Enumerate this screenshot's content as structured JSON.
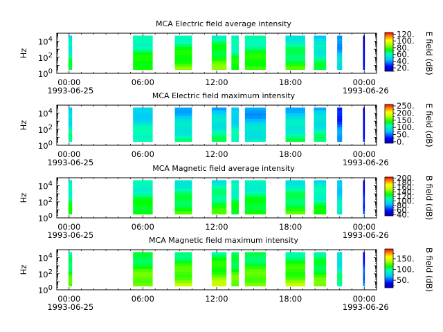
{
  "chart_data": [
    {
      "type": "heatmap",
      "title": "MCA  Electric field average intensity",
      "ylabel": "Hz",
      "y_scale": "log",
      "ylim": [
        1,
        100000
      ],
      "y_ticks": [
        {
          "base": "10",
          "exp": "0"
        },
        {
          "base": "10",
          "exp": "2"
        },
        {
          "base": "10",
          "exp": "4"
        }
      ],
      "x_range_hours": [
        -1,
        25
      ],
      "x_ticks": [
        {
          "hour": 0,
          "label": "00:00",
          "date": "1993-06-25"
        },
        {
          "hour": 6,
          "label": "06:00",
          "date": ""
        },
        {
          "hour": 12,
          "label": "12:00",
          "date": ""
        },
        {
          "hour": 18,
          "label": "18:00",
          "date": ""
        },
        {
          "hour": 24,
          "label": "00:00",
          "date": "1993-06-26"
        }
      ],
      "colorbar": {
        "label": "E field (dB)",
        "range": [
          10,
          125
        ],
        "ticks": [
          {
            "v": 20,
            "label": "20."
          },
          {
            "v": 40,
            "label": "40."
          },
          {
            "v": 60,
            "label": "60."
          },
          {
            "v": 80,
            "label": "80."
          },
          {
            "v": 100,
            "label": "100."
          },
          {
            "v": 120,
            "label": "120."
          }
        ]
      },
      "segments": [
        {
          "start": -0.05,
          "end": 0.25,
          "level": 60
        },
        {
          "start": 5.2,
          "end": 6.8,
          "level": 68
        },
        {
          "start": 8.6,
          "end": 10.0,
          "level": 72
        },
        {
          "start": 11.6,
          "end": 12.8,
          "level": 72
        },
        {
          "start": 13.2,
          "end": 13.8,
          "level": 66
        },
        {
          "start": 14.3,
          "end": 16.0,
          "level": 70
        },
        {
          "start": 17.6,
          "end": 19.2,
          "level": 66
        },
        {
          "start": 19.9,
          "end": 20.9,
          "level": 58
        },
        {
          "start": 21.8,
          "end": 22.2,
          "level": 45
        },
        {
          "start": 23.9,
          "end": 24.05,
          "level": 15
        }
      ]
    },
    {
      "type": "heatmap",
      "title": "MCA  Electric field maximum intensity",
      "ylabel": "Hz",
      "y_scale": "log",
      "ylim": [
        1,
        100000
      ],
      "y_ticks": [
        {
          "base": "10",
          "exp": "0"
        },
        {
          "base": "10",
          "exp": "2"
        },
        {
          "base": "10",
          "exp": "4"
        }
      ],
      "x_range_hours": [
        -1,
        25
      ],
      "x_ticks": [
        {
          "hour": 0,
          "label": "00:00",
          "date": "1993-06-25"
        },
        {
          "hour": 6,
          "label": "06:00",
          "date": ""
        },
        {
          "hour": 12,
          "label": "12:00",
          "date": ""
        },
        {
          "hour": 18,
          "label": "18:00",
          "date": ""
        },
        {
          "hour": 24,
          "label": "00:00",
          "date": "1993-06-26"
        }
      ],
      "colorbar": {
        "label": "E field (dB)",
        "range": [
          -10,
          260
        ],
        "ticks": [
          {
            "v": 0,
            "label": "0."
          },
          {
            "v": 50,
            "label": "50."
          },
          {
            "v": 100,
            "label": "100."
          },
          {
            "v": 150,
            "label": "150."
          },
          {
            "v": 200,
            "label": "200."
          },
          {
            "v": 250,
            "label": "250."
          }
        ]
      },
      "segments": [
        {
          "start": -0.05,
          "end": 0.25,
          "level": 95
        },
        {
          "start": 5.2,
          "end": 6.8,
          "level": 95
        },
        {
          "start": 8.6,
          "end": 10.0,
          "level": 90
        },
        {
          "start": 11.6,
          "end": 12.8,
          "level": 95
        },
        {
          "start": 13.2,
          "end": 13.8,
          "level": 90
        },
        {
          "start": 14.3,
          "end": 16.0,
          "level": 80
        },
        {
          "start": 17.6,
          "end": 19.2,
          "level": 95
        },
        {
          "start": 19.9,
          "end": 20.9,
          "level": 95
        },
        {
          "start": 21.8,
          "end": 22.2,
          "level": 45
        },
        {
          "start": 23.9,
          "end": 24.05,
          "level": 10
        }
      ]
    },
    {
      "type": "heatmap",
      "title": "MCA  Magnetic field average intensity",
      "ylabel": "Hz",
      "y_scale": "log",
      "ylim": [
        1,
        100000
      ],
      "y_ticks": [
        {
          "base": "10",
          "exp": "0"
        },
        {
          "base": "10",
          "exp": "2"
        },
        {
          "base": "10",
          "exp": "4"
        }
      ],
      "x_range_hours": [
        -1,
        25
      ],
      "x_ticks": [
        {
          "hour": 0,
          "label": "00:00",
          "date": "1993-06-25"
        },
        {
          "hour": 6,
          "label": "06:00",
          "date": ""
        },
        {
          "hour": 12,
          "label": "12:00",
          "date": ""
        },
        {
          "hour": 18,
          "label": "18:00",
          "date": ""
        },
        {
          "hour": 24,
          "label": "00:00",
          "date": "1993-06-26"
        }
      ],
      "colorbar": {
        "label": "B field (dB)",
        "range": [
          35,
          205
        ],
        "ticks": [
          {
            "v": 40,
            "label": "40."
          },
          {
            "v": 60,
            "label": "60."
          },
          {
            "v": 80,
            "label": "80."
          },
          {
            "v": 100,
            "label": "100."
          },
          {
            "v": 120,
            "label": "120."
          },
          {
            "v": 140,
            "label": "140."
          },
          {
            "v": 160,
            "label": "160."
          },
          {
            "v": 180,
            "label": "180."
          },
          {
            "v": 200,
            "label": "200."
          }
        ]
      },
      "segments": [
        {
          "start": -0.05,
          "end": 0.25,
          "level": 115
        },
        {
          "start": 5.2,
          "end": 6.8,
          "level": 118
        },
        {
          "start": 8.6,
          "end": 10.0,
          "level": 118
        },
        {
          "start": 11.6,
          "end": 12.8,
          "level": 118
        },
        {
          "start": 13.2,
          "end": 13.8,
          "level": 115
        },
        {
          "start": 14.3,
          "end": 16.0,
          "level": 118
        },
        {
          "start": 17.6,
          "end": 19.2,
          "level": 118
        },
        {
          "start": 19.9,
          "end": 20.9,
          "level": 112
        },
        {
          "start": 21.8,
          "end": 22.2,
          "level": 95
        },
        {
          "start": 23.9,
          "end": 24.05,
          "level": 55
        }
      ]
    },
    {
      "type": "heatmap",
      "title": "MCA  Magnetic field maximum intensity",
      "ylabel": "Hz",
      "y_scale": "log",
      "ylim": [
        1,
        100000
      ],
      "y_ticks": [
        {
          "base": "10",
          "exp": "0"
        },
        {
          "base": "10",
          "exp": "2"
        },
        {
          "base": "10",
          "exp": "4"
        }
      ],
      "x_range_hours": [
        -1,
        25
      ],
      "x_ticks": [
        {
          "hour": 0,
          "label": "00:00",
          "date": "1993-06-25"
        },
        {
          "hour": 6,
          "label": "06:00",
          "date": ""
        },
        {
          "hour": 12,
          "label": "12:00",
          "date": ""
        },
        {
          "hour": 18,
          "label": "18:00",
          "date": ""
        },
        {
          "hour": 24,
          "label": "00:00",
          "date": "1993-06-26"
        }
      ],
      "colorbar": {
        "label": "B field (dB)",
        "range": [
          15,
          195
        ],
        "ticks": [
          {
            "v": 50,
            "label": "50."
          },
          {
            "v": 100,
            "label": "100."
          },
          {
            "v": 150,
            "label": "150."
          }
        ]
      },
      "segments": [
        {
          "start": -0.05,
          "end": 0.25,
          "level": 110
        },
        {
          "start": 5.2,
          "end": 6.8,
          "level": 118
        },
        {
          "start": 8.6,
          "end": 10.0,
          "level": 120
        },
        {
          "start": 11.6,
          "end": 12.8,
          "level": 120
        },
        {
          "start": 13.2,
          "end": 13.8,
          "level": 115
        },
        {
          "start": 14.3,
          "end": 16.0,
          "level": 118
        },
        {
          "start": 17.6,
          "end": 19.2,
          "level": 118
        },
        {
          "start": 19.9,
          "end": 20.9,
          "level": 112
        },
        {
          "start": 21.8,
          "end": 22.2,
          "level": 90
        },
        {
          "start": 23.9,
          "end": 24.05,
          "level": 45
        }
      ]
    }
  ]
}
